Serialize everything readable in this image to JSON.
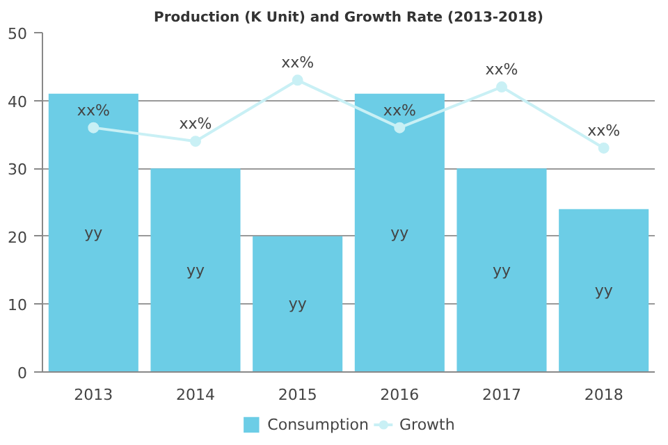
{
  "chart_data": {
    "type": "bar",
    "title": "Production (K Unit) and Growth Rate (2013-2018)",
    "categories": [
      "2013",
      "2014",
      "2015",
      "2016",
      "2017",
      "2018"
    ],
    "series": [
      {
        "name": "Consumption",
        "type": "bar",
        "color": "#6ccde6",
        "values": [
          41,
          30,
          20,
          41,
          30,
          24
        ],
        "value_labels": [
          "yy",
          "yy",
          "yy",
          "yy",
          "yy",
          "yy"
        ]
      },
      {
        "name": "Growth",
        "type": "line",
        "color": "#c9f0f5",
        "marker": "circle",
        "values": [
          36,
          34,
          43,
          36,
          42,
          33
        ],
        "value_labels": [
          "xx%",
          "xx%",
          "xx%",
          "xx%",
          "xx%",
          "xx%"
        ]
      }
    ],
    "ylim": [
      0,
      50
    ],
    "yticks": [
      0,
      10,
      20,
      30,
      40,
      50
    ],
    "grid": "y",
    "legend": "bottom"
  }
}
